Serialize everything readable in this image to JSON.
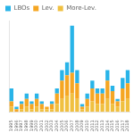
{
  "chart_data": {
    "type": "bar",
    "stacked": true,
    "categories": [
      "1995",
      "1996",
      "1997",
      "1998",
      "1999",
      "2000",
      "2001",
      "2002",
      "2003",
      "2004",
      "2005",
      "2006",
      "2007",
      "2008",
      "2009",
      "2010",
      "2011",
      "2012",
      "2013",
      "2014",
      "2015",
      "2016",
      "2017",
      "2018"
    ],
    "series": [
      {
        "name": "More-Lev.",
        "color": "#f0c040",
        "values": [
          2,
          0,
          1,
          2,
          1,
          2,
          1,
          1,
          1,
          3,
          5,
          6,
          7,
          5,
          1,
          2,
          4,
          3,
          3,
          5,
          3,
          2,
          4,
          5
        ]
      },
      {
        "name": "Lev.",
        "color": "#f5a623",
        "values": [
          2,
          1,
          2,
          3,
          2,
          3,
          2,
          1,
          2,
          4,
          7,
          8,
          8,
          6,
          1,
          3,
          5,
          4,
          4,
          7,
          5,
          2,
          5,
          6
        ]
      },
      {
        "name": "LBOs",
        "color": "#29b4e8",
        "values": [
          5,
          1,
          1,
          2,
          1,
          2,
          1,
          0,
          1,
          2,
          4,
          5,
          18,
          5,
          1,
          2,
          3,
          2,
          2,
          4,
          2,
          1,
          4,
          5
        ]
      }
    ],
    "ylim": [
      0,
      35
    ],
    "grid": false,
    "tick_labels": "x",
    "legend": "upper left"
  }
}
